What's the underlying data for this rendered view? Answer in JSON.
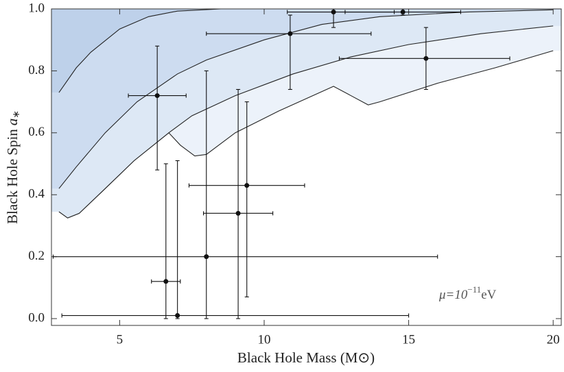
{
  "chart_data": {
    "type": "scatter",
    "xlabel": "Black Hole Mass (M⊙)",
    "ylabel": "Black Hole Spin",
    "ylabel_symbol": "a",
    "ylabel_subscript": "∗",
    "annotation": {
      "base": "μ=10",
      "exponent": "−11",
      "unit": "eV"
    },
    "xlim": [
      2.64,
      20.28
    ],
    "ylim": [
      -0.022,
      1.0
    ],
    "xticks": [
      5,
      10,
      15,
      20
    ],
    "yticks": [
      {
        "value": 0,
        "label": "0.0"
      },
      0.2,
      0.4,
      0.6,
      0.8,
      {
        "value": 1,
        "label": "1.0"
      }
    ],
    "color": "#111111",
    "x": [
      6.3,
      6.6,
      7.0,
      8.0,
      9.1,
      9.4,
      10.9,
      12.4,
      14.8,
      15.6
    ],
    "y": [
      0.72,
      0.12,
      0.01,
      0.2,
      0.34,
      0.43,
      0.92,
      0.99,
      0.99,
      0.84
    ],
    "x_low": [
      5.3,
      6.1,
      3.0,
      2.7,
      7.9,
      7.4,
      8.0,
      10.8,
      12.8,
      12.6
    ],
    "x_high": [
      7.3,
      7.1,
      15.0,
      16.0,
      10.3,
      11.4,
      13.7,
      14.5,
      16.8,
      18.5
    ],
    "y_low": [
      0.48,
      0.0,
      0.0,
      0.0,
      0.0,
      0.07,
      0.74,
      0.94,
      0.98,
      0.74
    ],
    "y_high": [
      0.88,
      0.5,
      0.51,
      0.8,
      0.74,
      0.7,
      0.98,
      1.0,
      1.0,
      0.94
    ],
    "regions": [
      {
        "color": "#ecf2fa",
        "x": [
          2.9,
          3.2,
          3.6,
          4.5,
          5.5,
          6.7,
          7.1,
          7.6,
          8.0,
          9.0,
          10.5,
          12.4,
          13.0,
          13.6,
          14.0,
          16,
          18,
          20
        ],
        "y": [
          0.345,
          0.325,
          0.34,
          0.42,
          0.51,
          0.6,
          0.56,
          0.525,
          0.53,
          0.6,
          0.67,
          0.75,
          0.72,
          0.69,
          0.7,
          0.76,
          0.81,
          0.865
        ]
      },
      {
        "color": "#dde8f5",
        "x": [
          2.9,
          3.2,
          3.6,
          4.5,
          5.5,
          6.7,
          7.5,
          9,
          11,
          13,
          15,
          17.5,
          20
        ],
        "y": [
          0.345,
          0.325,
          0.34,
          0.42,
          0.51,
          0.6,
          0.655,
          0.72,
          0.79,
          0.845,
          0.885,
          0.92,
          0.945
        ]
      },
      {
        "color": "#cddcf0",
        "x": [
          2.9,
          3.5,
          4.5,
          5.6,
          7,
          8,
          10,
          12,
          14,
          17,
          20
        ],
        "y": [
          0.42,
          0.49,
          0.6,
          0.7,
          0.79,
          0.835,
          0.9,
          0.95,
          0.975,
          0.99,
          0.997
        ]
      },
      {
        "color": "#bed1ea",
        "x": [
          2.9,
          3.5,
          4,
          5,
          6,
          7,
          8.5
        ],
        "y": [
          0.73,
          0.81,
          0.86,
          0.935,
          0.975,
          0.993,
          1.0
        ]
      }
    ]
  }
}
